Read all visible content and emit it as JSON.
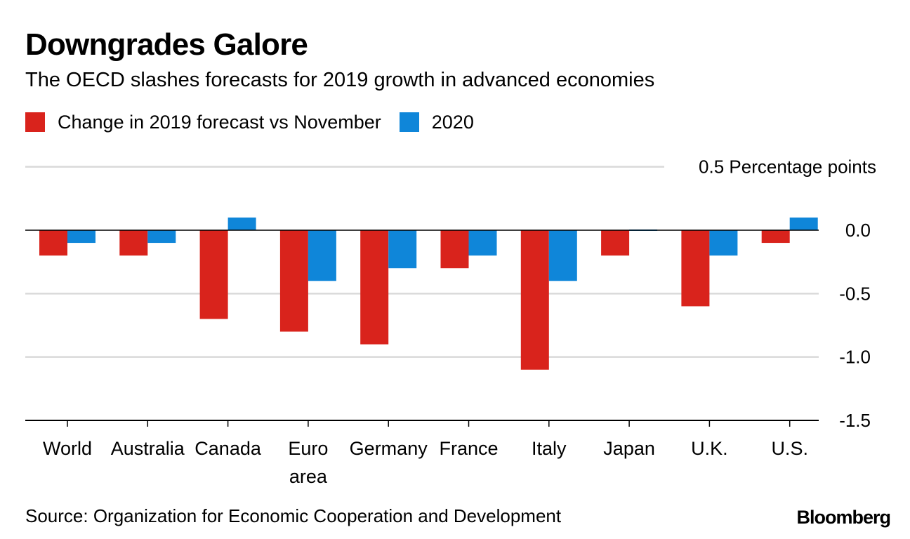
{
  "chart_data": {
    "type": "bar",
    "title": "Downgrades Galore",
    "subtitle": "The OECD slashes forecasts for 2019 growth in advanced economies",
    "categories": [
      [
        "World"
      ],
      [
        "Australia"
      ],
      [
        "Canada"
      ],
      [
        "Euro",
        "area"
      ],
      [
        "Germany"
      ],
      [
        "France"
      ],
      [
        "Italy"
      ],
      [
        "Japan"
      ],
      [
        "U.K."
      ],
      [
        "U.S."
      ]
    ],
    "series": [
      {
        "name": "Change in 2019 forecast vs November",
        "color": "#d9231c",
        "values": [
          -0.2,
          -0.2,
          -0.7,
          -0.8,
          -0.9,
          -0.3,
          -1.1,
          -0.2,
          -0.6,
          -0.1
        ]
      },
      {
        "name": "2020",
        "color": "#0f86d9",
        "values": [
          -0.1,
          -0.1,
          0.1,
          -0.4,
          -0.3,
          -0.2,
          -0.4,
          0.0,
          -0.2,
          0.1
        ]
      }
    ],
    "ylim": [
      -1.5,
      0.5
    ],
    "yticks": [
      0.5,
      0.0,
      -0.5,
      -1.0,
      -1.5
    ],
    "ytick_labels": [
      "0.0",
      "-0.5",
      "-1.0",
      "-1.5"
    ],
    "ylabel": "0.5 Percentage points",
    "axis_side": "right",
    "grid": true,
    "xlabel": "",
    "legend_position": "top-left"
  },
  "source": "Source: Organization for Economic Cooperation and Development",
  "brand": "Bloomberg",
  "colors": {
    "grid": "#d9d9d9",
    "axis": "#000000"
  }
}
